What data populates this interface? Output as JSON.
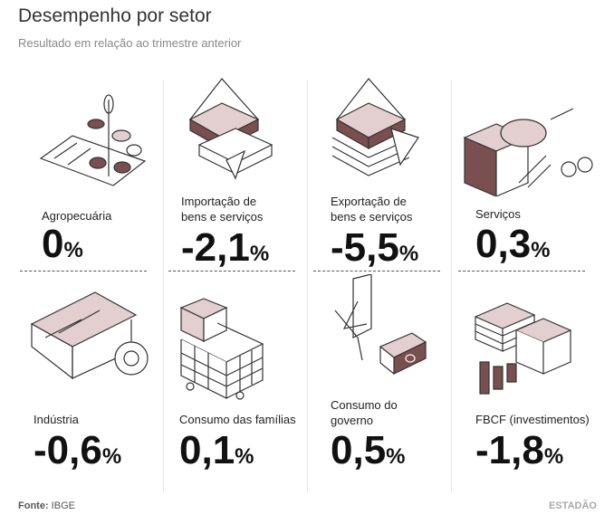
{
  "header": {
    "title": "Desempenho por setor",
    "subtitle": "Resultado em relação ao trimestre anterior"
  },
  "cells": [
    {
      "label": [
        "Agropecuária"
      ],
      "value": "0",
      "unit": "%"
    },
    {
      "label": [
        "Importação de",
        "bens e serviços"
      ],
      "value": "-2,1",
      "unit": "%"
    },
    {
      "label": [
        "Exportação de",
        "bens e serviços"
      ],
      "value": "-5,5",
      "unit": "%"
    },
    {
      "label": [
        "Serviços"
      ],
      "value": "0,3",
      "unit": "%"
    },
    {
      "label": [
        "Indústria"
      ],
      "value": "-0,6",
      "unit": "%"
    },
    {
      "label": [
        "Consumo das famílias"
      ],
      "value": "0,1",
      "unit": "%"
    },
    {
      "label": [
        "Consumo do",
        "governo"
      ],
      "value": "0,5",
      "unit": "%"
    },
    {
      "label": [
        "FBCF (investimentos)"
      ],
      "value": "-1,8",
      "unit": "%"
    }
  ],
  "footer": {
    "source_label": "Fonte:",
    "source": "IBGE",
    "brand": "ESTADÃO"
  }
}
